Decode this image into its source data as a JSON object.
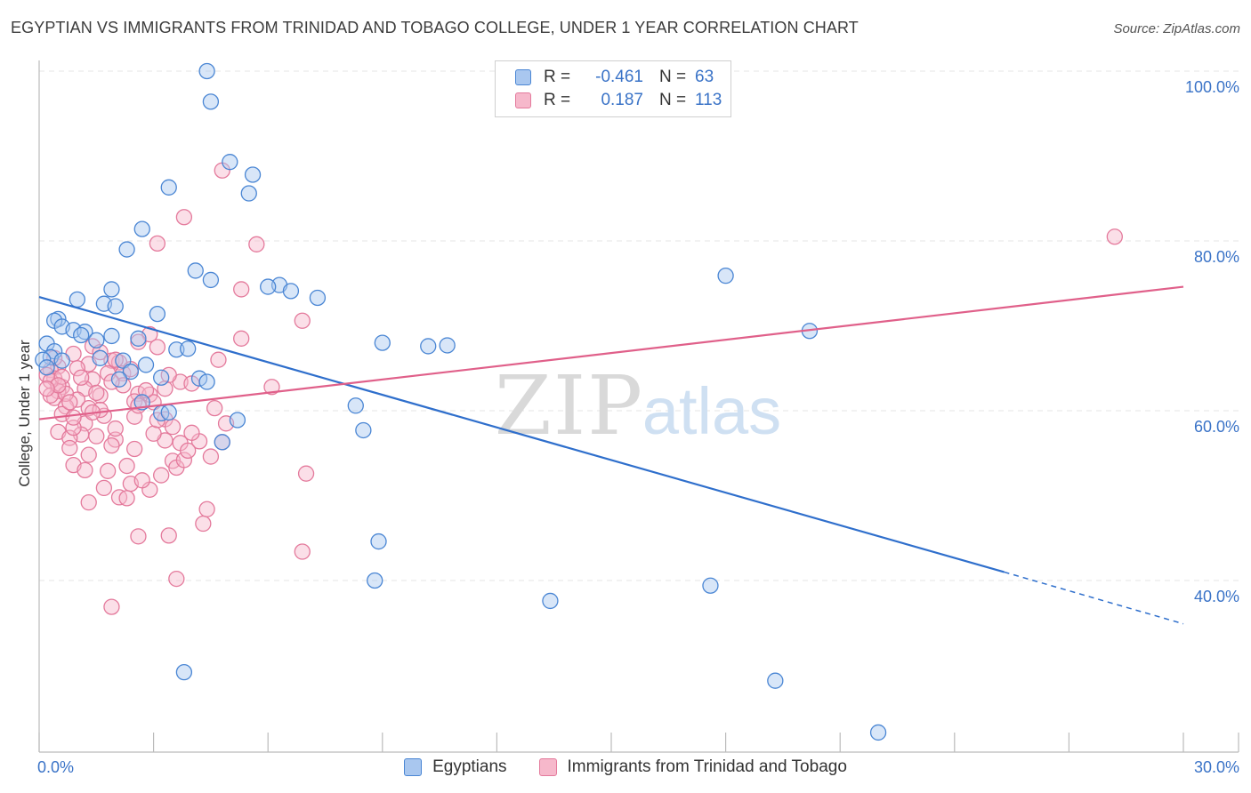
{
  "title": "EGYPTIAN VS IMMIGRANTS FROM TRINIDAD AND TOBAGO COLLEGE, UNDER 1 YEAR CORRELATION CHART",
  "source": "Source: ZipAtlas.com",
  "watermark": {
    "zip": "ZIP",
    "atlas": "atlas"
  },
  "colors": {
    "blue_fill": "#a9c7ef",
    "blue_stroke": "#4a86d4",
    "blue_line": "#2f6fcc",
    "pink_fill": "#f6b8cb",
    "pink_stroke": "#e47a9c",
    "pink_line": "#e0608a",
    "value_text": "#3a73c7",
    "grid": "#e4e4e4"
  },
  "stats": [
    {
      "series": "Egyptians",
      "r_label": "R =",
      "r_value": "-0.461",
      "n_label": "N =",
      "n_value": "63"
    },
    {
      "series": "Immigrants from Trinidad and Tobago",
      "r_label": "R =",
      "r_value": "0.187",
      "n_label": "N =",
      "n_value": "113"
    }
  ],
  "chart_data": {
    "type": "scatter",
    "title": "EGYPTIAN VS IMMIGRANTS FROM TRINIDAD AND TOBAGO COLLEGE, UNDER 1 YEAR CORRELATION CHART",
    "xlabel": "",
    "ylabel": "College, Under 1 year",
    "xlim": [
      0,
      30
    ],
    "ylim": [
      20,
      102
    ],
    "x_tick_labels": [
      {
        "value": 0,
        "label": "0.0%"
      },
      {
        "value": 30,
        "label": "30.0%"
      }
    ],
    "y_tick_labels": [
      {
        "value": 100,
        "label": "100.0%"
      },
      {
        "value": 80,
        "label": "80.0%"
      },
      {
        "value": 60,
        "label": "60.0%"
      },
      {
        "value": 40,
        "label": "40.0%"
      }
    ],
    "y_gridlines": [
      40,
      60,
      80,
      100
    ],
    "x_minor_ticks": [
      3,
      6,
      9,
      12,
      15,
      18,
      21,
      24,
      27
    ],
    "legend_position": "bottom-center",
    "series": [
      {
        "name": "Egyptians",
        "color": "blue",
        "trend": {
          "x0": 0,
          "y0": 73.4,
          "x1": 25.3,
          "y1": 41.0,
          "dashed_to_x": 30,
          "dashed_to_y": 34.9
        },
        "points": [
          [
            4.4,
            100
          ],
          [
            4.5,
            96.4
          ],
          [
            5.0,
            89.3
          ],
          [
            5.6,
            87.8
          ],
          [
            3.4,
            86.3
          ],
          [
            5.5,
            85.6
          ],
          [
            2.7,
            81.4
          ],
          [
            2.3,
            79.0
          ],
          [
            4.1,
            76.5
          ],
          [
            4.5,
            75.4
          ],
          [
            6.3,
            74.8
          ],
          [
            6.0,
            74.6
          ],
          [
            1.9,
            74.3
          ],
          [
            6.6,
            74.1
          ],
          [
            7.3,
            73.3
          ],
          [
            1.0,
            73.1
          ],
          [
            1.7,
            72.6
          ],
          [
            2.0,
            72.3
          ],
          [
            3.1,
            71.4
          ],
          [
            0.5,
            70.8
          ],
          [
            0.4,
            70.6
          ],
          [
            0.6,
            69.9
          ],
          [
            0.9,
            69.5
          ],
          [
            1.2,
            69.3
          ],
          [
            1.1,
            68.9
          ],
          [
            1.9,
            68.8
          ],
          [
            1.5,
            68.3
          ],
          [
            2.6,
            68.5
          ],
          [
            9.0,
            68.0
          ],
          [
            10.2,
            67.6
          ],
          [
            10.7,
            67.7
          ],
          [
            0.2,
            67.9
          ],
          [
            0.4,
            67.0
          ],
          [
            3.6,
            67.2
          ],
          [
            3.9,
            67.3
          ],
          [
            0.3,
            66.3
          ],
          [
            0.1,
            66.0
          ],
          [
            0.6,
            65.9
          ],
          [
            1.6,
            66.2
          ],
          [
            2.2,
            65.9
          ],
          [
            2.8,
            65.4
          ],
          [
            2.4,
            64.6
          ],
          [
            2.1,
            63.7
          ],
          [
            3.2,
            63.9
          ],
          [
            4.2,
            63.8
          ],
          [
            4.4,
            63.4
          ],
          [
            2.7,
            61.0
          ],
          [
            8.3,
            60.6
          ],
          [
            3.2,
            59.7
          ],
          [
            3.4,
            59.8
          ],
          [
            5.2,
            58.9
          ],
          [
            8.5,
            57.7
          ],
          [
            4.8,
            56.3
          ],
          [
            18.0,
            75.9
          ],
          [
            20.2,
            69.4
          ],
          [
            8.9,
            44.6
          ],
          [
            8.8,
            40.0
          ],
          [
            13.4,
            37.6
          ],
          [
            17.6,
            39.4
          ],
          [
            3.8,
            29.2
          ],
          [
            19.3,
            28.2
          ],
          [
            22.0,
            22.1
          ],
          [
            0.2,
            65.1
          ]
        ]
      },
      {
        "name": "Immigrants from Trinidad and Tobago",
        "color": "pink",
        "trend": {
          "x0": 0,
          "y0": 59.0,
          "x1": 30,
          "y1": 74.6
        },
        "points": [
          [
            4.8,
            88.3
          ],
          [
            3.8,
            82.8
          ],
          [
            3.1,
            79.7
          ],
          [
            5.7,
            79.6
          ],
          [
            5.3,
            74.3
          ],
          [
            6.9,
            70.6
          ],
          [
            2.9,
            69.0
          ],
          [
            5.3,
            68.5
          ],
          [
            2.6,
            68.1
          ],
          [
            3.1,
            67.5
          ],
          [
            1.4,
            67.6
          ],
          [
            1.6,
            66.9
          ],
          [
            0.9,
            66.7
          ],
          [
            4.7,
            66.0
          ],
          [
            1.9,
            65.9
          ],
          [
            2.1,
            65.7
          ],
          [
            0.5,
            65.2
          ],
          [
            1.3,
            65.5
          ],
          [
            0.3,
            64.8
          ],
          [
            1.8,
            64.4
          ],
          [
            2.2,
            64.4
          ],
          [
            0.4,
            63.8
          ],
          [
            1.4,
            63.7
          ],
          [
            3.7,
            63.4
          ],
          [
            4.0,
            63.2
          ],
          [
            0.6,
            62.8
          ],
          [
            1.2,
            62.6
          ],
          [
            0.5,
            62.3
          ],
          [
            2.6,
            62.0
          ],
          [
            2.9,
            61.9
          ],
          [
            1.6,
            61.8
          ],
          [
            0.4,
            61.5
          ],
          [
            1.0,
            61.3
          ],
          [
            2.5,
            61.1
          ],
          [
            3.0,
            61.0
          ],
          [
            0.7,
            60.5
          ],
          [
            1.3,
            60.3
          ],
          [
            6.1,
            62.8
          ],
          [
            0.6,
            59.6
          ],
          [
            1.7,
            59.4
          ],
          [
            3.3,
            59.0
          ],
          [
            1.2,
            58.5
          ],
          [
            3.5,
            58.1
          ],
          [
            0.5,
            57.5
          ],
          [
            1.1,
            57.2
          ],
          [
            0.8,
            56.8
          ],
          [
            2.0,
            56.6
          ],
          [
            3.3,
            56.5
          ],
          [
            4.2,
            56.4
          ],
          [
            3.7,
            56.2
          ],
          [
            4.8,
            56.3
          ],
          [
            1.9,
            55.9
          ],
          [
            0.8,
            55.6
          ],
          [
            2.5,
            55.5
          ],
          [
            4.5,
            54.6
          ],
          [
            1.3,
            54.8
          ],
          [
            3.5,
            54.1
          ],
          [
            0.9,
            53.6
          ],
          [
            2.3,
            53.5
          ],
          [
            3.6,
            53.3
          ],
          [
            1.2,
            53.0
          ],
          [
            1.8,
            52.9
          ],
          [
            3.2,
            52.4
          ],
          [
            2.4,
            51.4
          ],
          [
            7.0,
            52.6
          ],
          [
            1.7,
            50.9
          ],
          [
            2.9,
            50.7
          ],
          [
            2.1,
            49.8
          ],
          [
            2.3,
            49.7
          ],
          [
            1.3,
            49.2
          ],
          [
            4.4,
            48.4
          ],
          [
            4.3,
            46.7
          ],
          [
            2.6,
            45.2
          ],
          [
            3.4,
            45.3
          ],
          [
            6.9,
            43.4
          ],
          [
            3.6,
            40.2
          ],
          [
            1.9,
            36.9
          ],
          [
            0.7,
            62.0
          ],
          [
            0.2,
            64.2
          ],
          [
            0.3,
            63.5
          ],
          [
            1.5,
            62.1
          ],
          [
            2.2,
            63.0
          ],
          [
            2.8,
            62.4
          ],
          [
            3.4,
            64.2
          ],
          [
            0.9,
            58.0
          ],
          [
            1.6,
            60.1
          ],
          [
            2.5,
            59.3
          ],
          [
            3.0,
            57.3
          ],
          [
            0.4,
            66.2
          ],
          [
            1.0,
            65.0
          ],
          [
            2.0,
            66.0
          ],
          [
            0.6,
            64.0
          ],
          [
            4.0,
            57.4
          ],
          [
            3.8,
            54.2
          ],
          [
            2.7,
            51.8
          ],
          [
            1.5,
            57.0
          ],
          [
            0.8,
            61.0
          ],
          [
            1.9,
            63.4
          ],
          [
            3.3,
            62.6
          ],
          [
            0.3,
            61.8
          ],
          [
            0.9,
            59.2
          ],
          [
            2.4,
            64.9
          ],
          [
            4.6,
            60.3
          ],
          [
            3.9,
            55.3
          ],
          [
            1.1,
            63.9
          ],
          [
            2.6,
            60.6
          ],
          [
            0.5,
            63.0
          ],
          [
            3.1,
            58.9
          ],
          [
            1.4,
            59.8
          ],
          [
            28.2,
            80.5
          ],
          [
            2.0,
            57.9
          ],
          [
            4.9,
            58.5
          ],
          [
            0.2,
            62.6
          ]
        ]
      }
    ]
  }
}
